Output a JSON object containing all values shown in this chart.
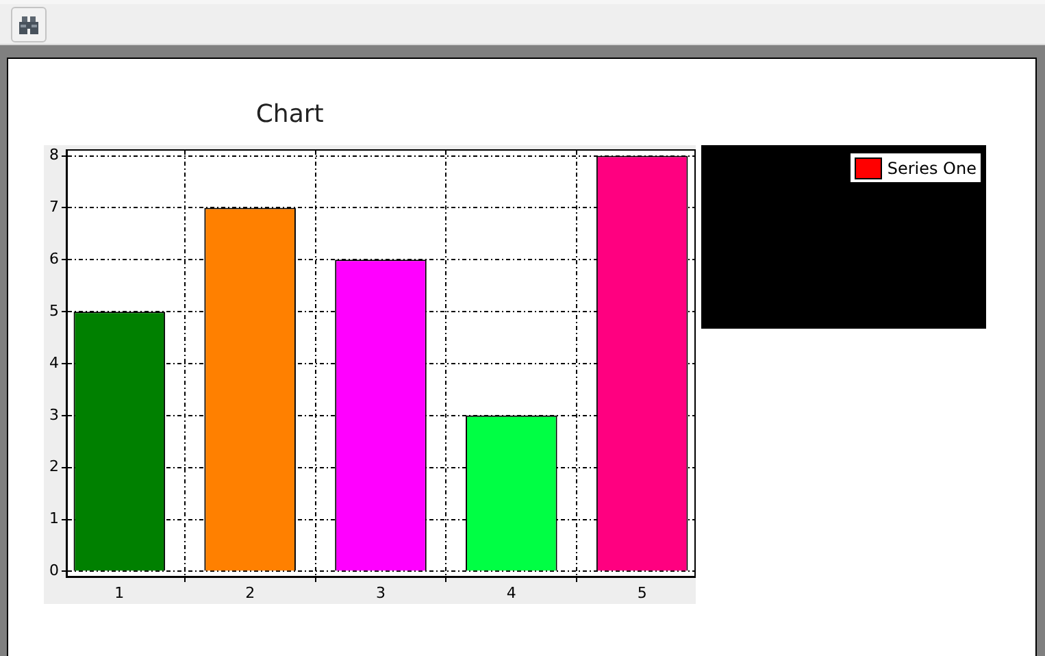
{
  "chart_data": {
    "type": "bar",
    "title": "Chart",
    "x": [
      1,
      2,
      3,
      4,
      5
    ],
    "xlim": [
      0.6,
      5.4
    ],
    "xticks": [
      1,
      2,
      3,
      4,
      5
    ],
    "ylim": [
      -0.1,
      8.1
    ],
    "yticks": [
      0,
      1,
      2,
      3,
      4,
      5,
      6,
      7,
      8
    ],
    "series": [
      {
        "name": "Series One",
        "color": "#ff0000",
        "colors": [
          "#008000",
          "#ff8000",
          "#ff00ff",
          "#00ff44",
          "#ff0080"
        ],
        "values": [
          5,
          7,
          6,
          3,
          8
        ]
      }
    ],
    "grid": true,
    "legend": "right"
  }
}
